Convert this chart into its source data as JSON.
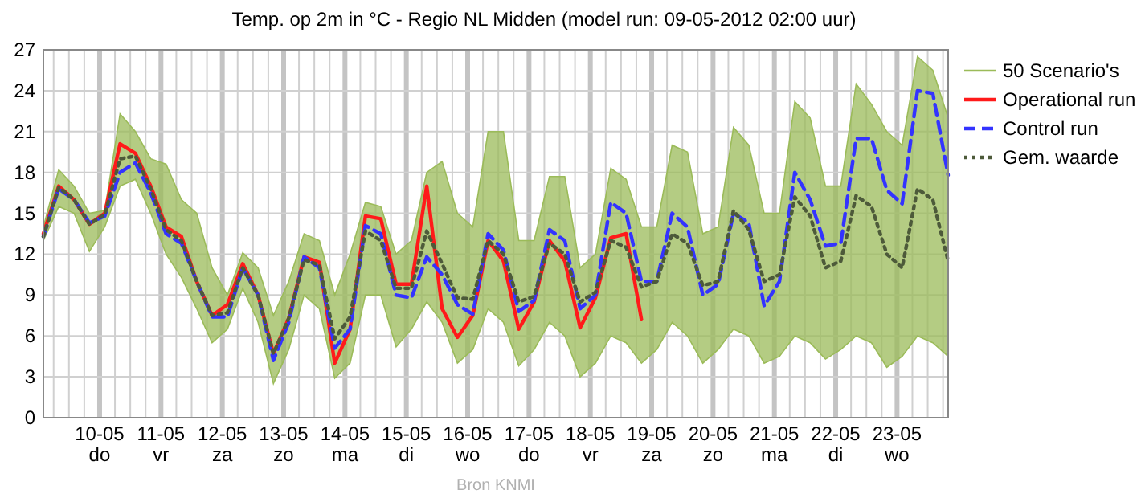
{
  "chart_data": {
    "type": "line",
    "title": "Temp. op 2m in °C - Regio NL Midden (model run: 09-05-2012 02:00 uur)",
    "annotations": [
      "Bron KNMI"
    ],
    "x": [
      "2012-05-09T02:00",
      "2012-05-09T08:00",
      "2012-05-09T14:00",
      "2012-05-09T20:00",
      "2012-05-10T02:00",
      "2012-05-10T08:00",
      "2012-05-10T14:00",
      "2012-05-10T20:00",
      "2012-05-11T02:00",
      "2012-05-11T08:00",
      "2012-05-11T14:00",
      "2012-05-11T20:00",
      "2012-05-12T02:00",
      "2012-05-12T08:00",
      "2012-05-12T14:00",
      "2012-05-12T20:00",
      "2012-05-13T02:00",
      "2012-05-13T08:00",
      "2012-05-13T14:00",
      "2012-05-13T20:00",
      "2012-05-14T02:00",
      "2012-05-14T08:00",
      "2012-05-14T14:00",
      "2012-05-14T20:00",
      "2012-05-15T02:00",
      "2012-05-15T08:00",
      "2012-05-15T14:00",
      "2012-05-15T20:00",
      "2012-05-16T02:00",
      "2012-05-16T08:00",
      "2012-05-16T14:00",
      "2012-05-16T20:00",
      "2012-05-17T02:00",
      "2012-05-17T08:00",
      "2012-05-17T14:00",
      "2012-05-17T20:00",
      "2012-05-18T02:00",
      "2012-05-18T08:00",
      "2012-05-18T14:00",
      "2012-05-18T20:00",
      "2012-05-19T02:00",
      "2012-05-19T08:00",
      "2012-05-19T14:00",
      "2012-05-19T20:00",
      "2012-05-20T02:00",
      "2012-05-20T08:00",
      "2012-05-20T14:00",
      "2012-05-20T20:00",
      "2012-05-21T02:00",
      "2012-05-21T08:00",
      "2012-05-21T14:00",
      "2012-05-21T20:00",
      "2012-05-22T02:00",
      "2012-05-22T08:00",
      "2012-05-22T14:00",
      "2012-05-22T20:00",
      "2012-05-23T02:00",
      "2012-05-23T08:00",
      "2012-05-23T14:00",
      "2012-05-23T20:00"
    ],
    "xlim": [
      "2012-05-09T02:00",
      "2012-05-23T20:00"
    ],
    "xticks": [
      {
        "value": "2012-05-10",
        "label": "10-05\ndo"
      },
      {
        "value": "2012-05-11",
        "label": "11-05\nvr"
      },
      {
        "value": "2012-05-12",
        "label": "12-05\nza"
      },
      {
        "value": "2012-05-13",
        "label": "13-05\nzo"
      },
      {
        "value": "2012-05-14",
        "label": "14-05\nma"
      },
      {
        "value": "2012-05-15",
        "label": "15-05\ndi"
      },
      {
        "value": "2012-05-16",
        "label": "16-05\nwo"
      },
      {
        "value": "2012-05-17",
        "label": "17-05\ndo"
      },
      {
        "value": "2012-05-18",
        "label": "18-05\nvr"
      },
      {
        "value": "2012-05-19",
        "label": "19-05\nza"
      },
      {
        "value": "2012-05-20",
        "label": "20-05\nzo"
      },
      {
        "value": "2012-05-21",
        "label": "21-05\nma"
      },
      {
        "value": "2012-05-22",
        "label": "22-05\ndi"
      },
      {
        "value": "2012-05-23",
        "label": "23-05\nwo"
      }
    ],
    "ylim": [
      0,
      27
    ],
    "yticks": [
      0,
      3,
      6,
      9,
      12,
      15,
      18,
      21,
      24,
      27
    ],
    "grid": true,
    "legend": "right",
    "series": [
      {
        "name": "50 Scenario's",
        "color": "#9bbb59",
        "line_style": "solid",
        "values": [
          null,
          null,
          null,
          null,
          null,
          null,
          null,
          null,
          null,
          null,
          null,
          null,
          null,
          null,
          null,
          null,
          null,
          null,
          null,
          null,
          null,
          null,
          null,
          null,
          null,
          null,
          null,
          null,
          null,
          null,
          null,
          null,
          null,
          null,
          null,
          null,
          null,
          null,
          null,
          null,
          null,
          null,
          null,
          null,
          null,
          null,
          null,
          null,
          null,
          null,
          null,
          null,
          null,
          null,
          null,
          null,
          null,
          null,
          null,
          null
        ],
        "upper": [
          14,
          18.2,
          17,
          15,
          15.2,
          22.3,
          21,
          19,
          18.6,
          16,
          15,
          11,
          9,
          12.1,
          11,
          7.5,
          10,
          13.5,
          13,
          9,
          12,
          15.8,
          15.5,
          12,
          13,
          18,
          18.8,
          15,
          14,
          21,
          21,
          13,
          13,
          17.7,
          17.7,
          11,
          12,
          18.3,
          17.5,
          14,
          14,
          20,
          19.5,
          13.5,
          14,
          21.3,
          20,
          15,
          15,
          23.2,
          22,
          17,
          17,
          24.5,
          23,
          21,
          20,
          26.5,
          25.5,
          22
        ],
        "lower": [
          13,
          15.5,
          15,
          12.2,
          14,
          17,
          17.5,
          15,
          12,
          10.3,
          8,
          5.5,
          6.5,
          9.5,
          7,
          2.5,
          5,
          9,
          8,
          2.9,
          4,
          9,
          9,
          5.2,
          6.5,
          8.5,
          7,
          4,
          5,
          8,
          7,
          3.8,
          5,
          7,
          6,
          3,
          4,
          6,
          5.5,
          4,
          5,
          7,
          6,
          4,
          5,
          6.5,
          6,
          4,
          4.5,
          6,
          5.5,
          4.3,
          5,
          6,
          5.5,
          3.7,
          4.5,
          6,
          5.5,
          4.5
        ]
      },
      {
        "name": "Operational run",
        "color": "#ff1a1a",
        "line_style": "solid",
        "values": [
          13.5,
          17,
          16,
          14.2,
          15,
          20.1,
          19.4,
          17,
          14,
          13.3,
          10,
          7.5,
          8.3,
          11.3,
          9,
          4.7,
          7.3,
          11.8,
          11.4,
          4,
          6.5,
          14.8,
          14.6,
          9.8,
          9.8,
          17,
          8,
          5.9,
          7.5,
          13,
          11.5,
          6.5,
          8.5,
          13,
          11.5,
          6.6,
          8.8,
          13.2,
          13.5,
          7.2,
          null,
          null,
          null,
          null,
          null,
          null,
          null,
          null,
          null,
          null,
          null,
          null,
          null,
          null,
          null,
          null,
          null,
          null,
          null,
          null
        ]
      },
      {
        "name": "Control run",
        "color": "#3333ff",
        "line_style": "dashed",
        "values": [
          13.3,
          16.8,
          16,
          14.3,
          14.8,
          18,
          18.7,
          16.5,
          13.5,
          12.8,
          10,
          7.4,
          7.4,
          11,
          9,
          4.2,
          7,
          11.8,
          11,
          5.1,
          6.5,
          14.1,
          13.5,
          9,
          8.8,
          11.8,
          10.5,
          8.3,
          7.6,
          13.5,
          12.3,
          7.8,
          8.6,
          13.8,
          13,
          8,
          9,
          15.8,
          15,
          10,
          10,
          15,
          14,
          9,
          9.8,
          15,
          14.3,
          8.2,
          10,
          18,
          16,
          12.6,
          12.8,
          20.5,
          20.5,
          16.7,
          15.7,
          24,
          23.8,
          17.8
        ]
      },
      {
        "name": "Gem. waarde",
        "color": "#4d5a3a",
        "line_style": "dotted",
        "values": [
          13.3,
          16.9,
          16,
          14.2,
          14.9,
          19,
          19.2,
          16.8,
          13.8,
          13,
          10,
          7.5,
          7.7,
          11,
          9,
          4.7,
          7.3,
          11.6,
          11.2,
          5.8,
          7.4,
          13.7,
          13,
          9.5,
          9.5,
          13.7,
          11.3,
          8.8,
          8.7,
          13,
          12,
          8.5,
          8.9,
          12.8,
          12,
          8.5,
          9.2,
          13,
          12.5,
          9.6,
          10,
          13.5,
          12.8,
          9.7,
          10,
          15.2,
          13.8,
          10,
          10.5,
          16.2,
          14.8,
          11,
          11.5,
          16.3,
          15.5,
          12,
          11,
          16.8,
          16,
          11.5
        ]
      }
    ]
  }
}
